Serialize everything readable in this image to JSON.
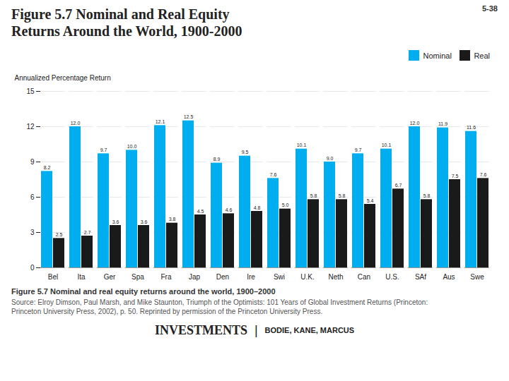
{
  "chart_data": {
    "type": "bar",
    "title": "Figure 5.7 Nominal and Real Equity",
    "subtitle": "Returns Around the World, 1900-2000",
    "ylabel": "Annualized Percentage Return",
    "categories": [
      "Bel",
      "Ita",
      "Ger",
      "Spa",
      "Fra",
      "Jap",
      "Den",
      "Ire",
      "Swi",
      "U.K.",
      "Neth",
      "Can",
      "U.S.",
      "SAf",
      "Aus",
      "Swe"
    ],
    "series": [
      {
        "name": "Nominal",
        "color": "#00AEEF",
        "values": [
          8.2,
          12.0,
          9.7,
          10.0,
          12.1,
          12.5,
          8.9,
          9.5,
          7.6,
          10.1,
          9.0,
          9.7,
          10.1,
          12.0,
          11.9,
          11.6
        ],
        "value_labels": [
          "8.2",
          "12.0",
          "9.7",
          "10.0",
          "12.1",
          "12.5",
          "8.9",
          "9.5",
          "7.6",
          "10.1",
          "9.0",
          "9.7",
          "10.1",
          "12.0",
          "11.9",
          "11.6"
        ]
      },
      {
        "name": "Real",
        "color": "#1a1a1a",
        "values": [
          2.5,
          2.7,
          3.6,
          3.6,
          3.8,
          4.5,
          4.6,
          4.8,
          5.0,
          5.8,
          5.8,
          5.4,
          6.7,
          5.8,
          7.5,
          7.6
        ],
        "value_labels": [
          "2.5",
          "2.7",
          "3.6",
          "3.6",
          "3.8",
          "4.5",
          "4.6",
          "4.8",
          "5.0",
          "5.8",
          "5.8",
          "5.4",
          "6.7",
          "5.8",
          "7.5",
          "7.6"
        ]
      }
    ],
    "ylim": [
      0,
      15
    ],
    "yticks": [
      0,
      3,
      6,
      9,
      12,
      15
    ],
    "grid": true,
    "legend": "upper right",
    "data_labels": true,
    "annotations": [
      "5-38",
      "Figure 5.7  Nominal and real equity returns around the world, 1900–2000",
      "Source: Elroy Dimson, Paul Marsh, and Mike Staunton, Triumph of the Optimists: 101 Years of Global Investment Returns (Princeton:\nPrinceton University Press, 2002), p. 50. Reprinted by permission of the Princeton University Press.",
      "INVESTMENTS",
      "|",
      "BODIE, KANE, MARCUS"
    ]
  }
}
